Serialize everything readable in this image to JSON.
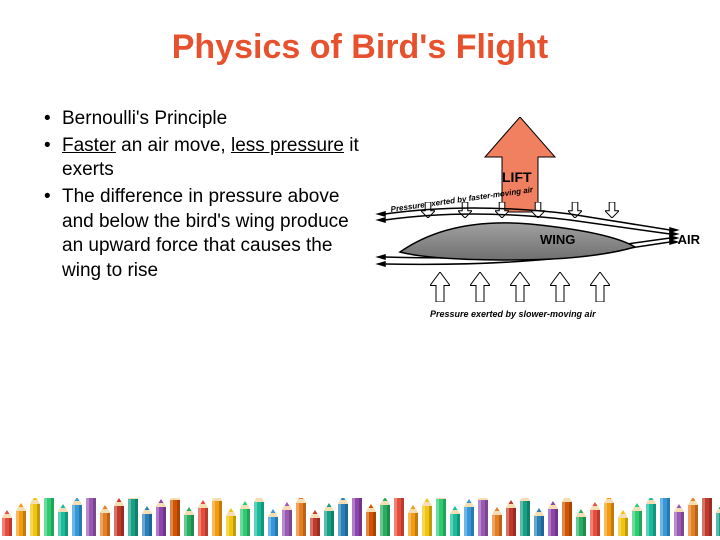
{
  "title": {
    "text": "Physics of Bird's Flight",
    "color": "#e8512e",
    "fontsize": 34
  },
  "bullets": {
    "fontsize": 19,
    "color": "#000000",
    "items": [
      {
        "pre": "",
        "u1": "",
        "mid": "Bernoulli's Principle",
        "u2": "",
        "post": ""
      },
      {
        "pre": "",
        "u1": "Faster",
        "mid": " an air move, ",
        "u2": "less pressure",
        "post": " it exerts"
      },
      {
        "pre": "",
        "u1": "",
        "mid": "The difference in pressure above and below the bird's wing produce an upward force that causes the wing to rise",
        "u2": "",
        "post": ""
      }
    ]
  },
  "diagram": {
    "lift_label": "LIFT",
    "wing_label": "WING",
    "air_label": "AIR",
    "top_caption": "Pressure exerted by faster-moving air",
    "bottom_caption": "Pressure exerted by slower-moving air",
    "lift_arrow_fill": "#f08060",
    "lift_arrow_stroke": "#000000",
    "wing_fill_top": "#a0a0a0",
    "wing_fill_bottom": "#707070",
    "wing_stroke": "#000000",
    "flowline_color": "#000000",
    "small_arrow_fill": "#ffffff",
    "small_arrow_stroke": "#000000",
    "background": "#ffffff"
  },
  "pencils": {
    "colors": [
      "#e74c3c",
      "#f39c12",
      "#f1c40f",
      "#2ecc71",
      "#1abc9c",
      "#3498db",
      "#9b59b6",
      "#e67e22",
      "#c0392b",
      "#16a085",
      "#2980b9",
      "#8e44ad",
      "#d35400",
      "#27ae60"
    ],
    "count": 52
  }
}
